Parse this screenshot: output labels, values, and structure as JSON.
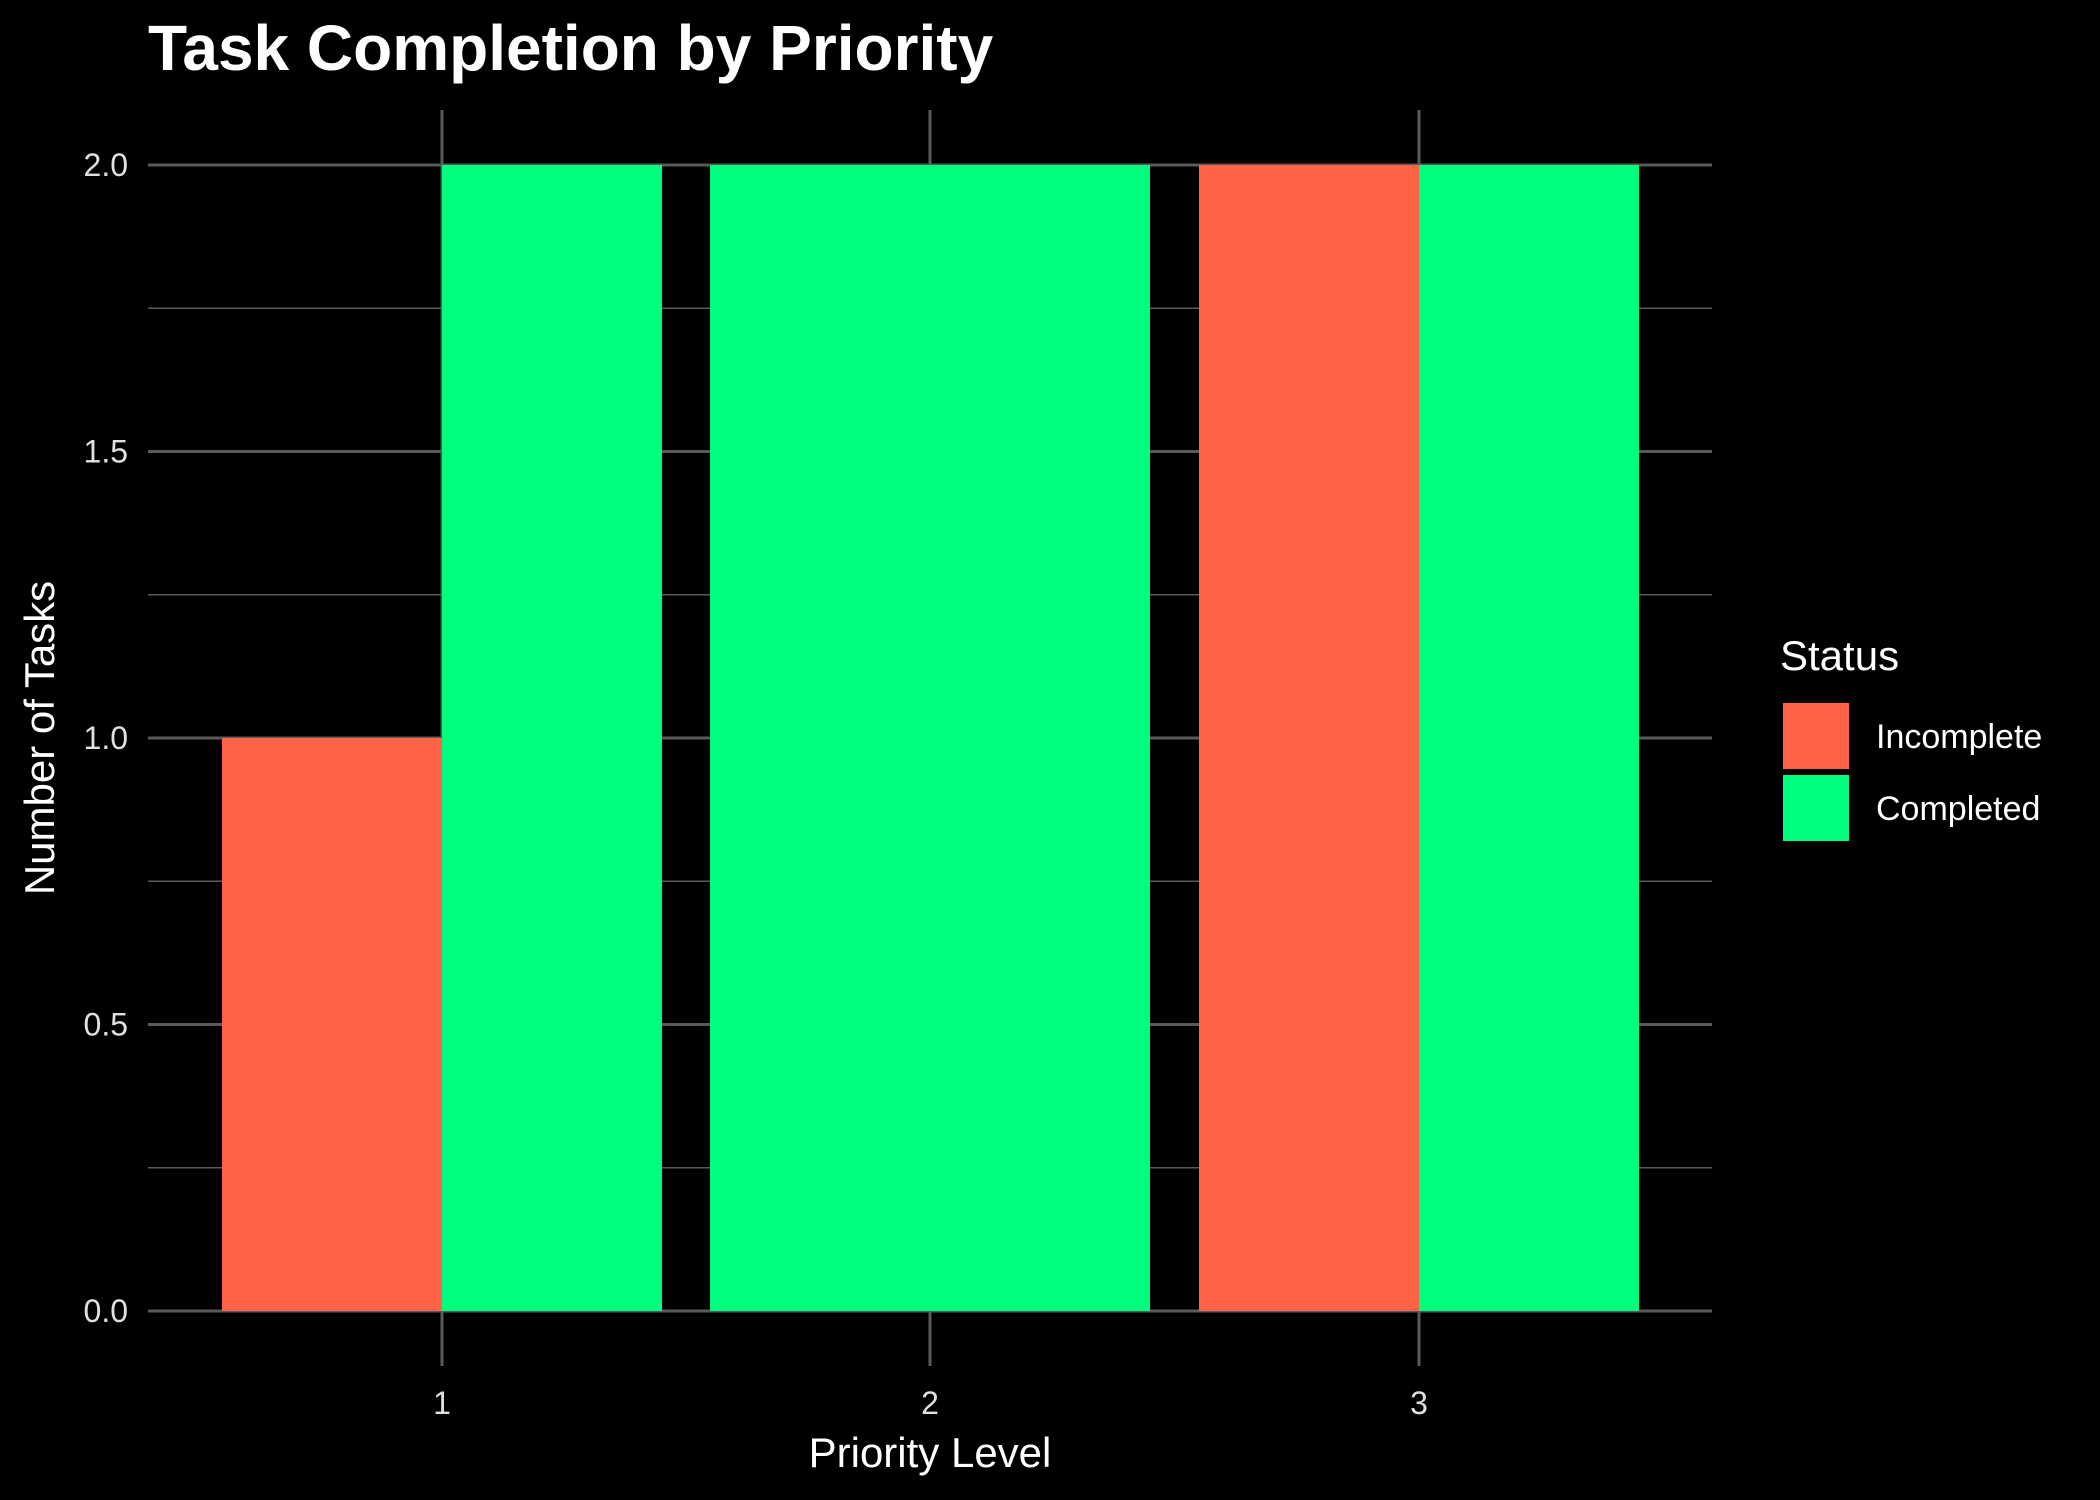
{
  "chart_data": {
    "type": "bar",
    "title": "Task Completion by Priority",
    "xlabel": "Priority Level",
    "ylabel": "Number of Tasks",
    "categories": [
      "1",
      "2",
      "3"
    ],
    "series": [
      {
        "name": "Incomplete",
        "values": [
          1,
          0,
          2
        ],
        "color": "#FF6347"
      },
      {
        "name": "Completed",
        "values": [
          2,
          2,
          2
        ],
        "color": "#00FF7F"
      }
    ],
    "ylim": [
      0,
      2
    ],
    "yticks": [
      "0.0",
      "0.5",
      "1.0",
      "1.5",
      "2.0"
    ],
    "grid": true,
    "legend": {
      "title": "Status",
      "position": "right"
    },
    "background": "#000000",
    "gridColor": "#5a5a5a"
  }
}
